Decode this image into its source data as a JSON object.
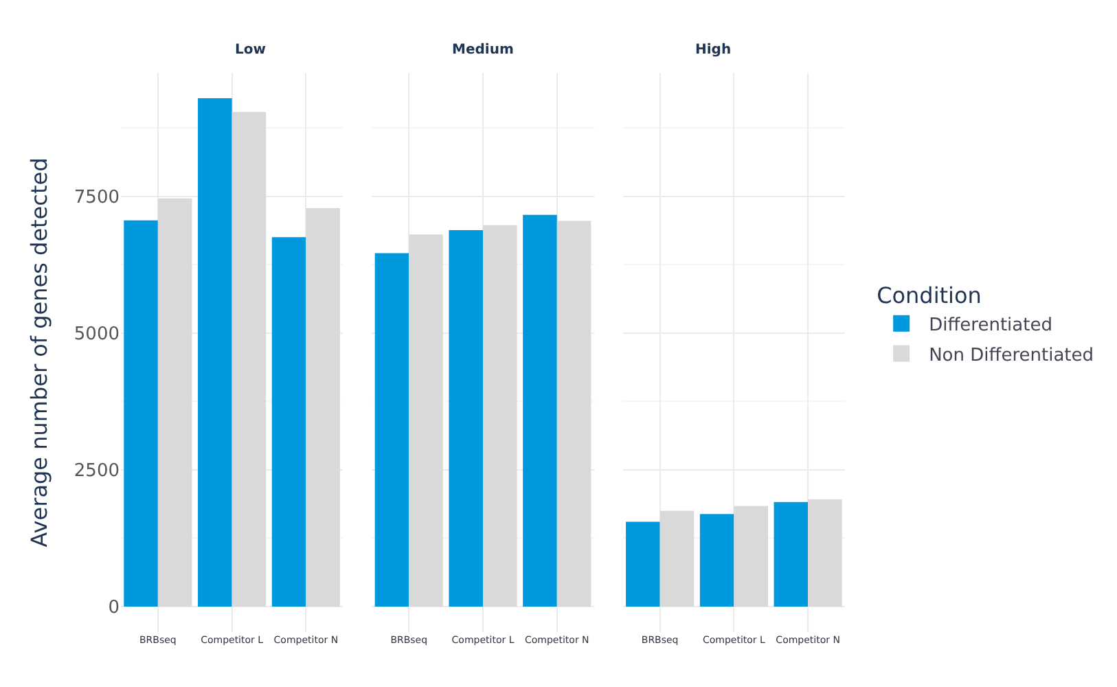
{
  "chart_data": [
    {
      "type": "bar",
      "title": "Low",
      "ylabel": "Average number of genes detected",
      "categories": [
        "BRBseq",
        "Competitor L",
        "Competitor N"
      ],
      "ylim": [
        -465,
        9755
      ],
      "yticks": [
        0,
        2500,
        5000,
        7500
      ],
      "grid": true,
      "legend": "right",
      "legend_title": "Condition",
      "series": [
        {
          "name": "Differentiated",
          "color": "#0099dd",
          "values": [
            7060,
            9290,
            6750
          ]
        },
        {
          "name": "Non Differentiated",
          "color": "#d9d9d9",
          "values": [
            7460,
            9040,
            7280
          ]
        }
      ]
    },
    {
      "type": "bar",
      "title": "Medium",
      "categories": [
        "BRBseq",
        "Competitor L",
        "Competitor N"
      ],
      "ylim": [
        -465,
        9755
      ],
      "yticks": [
        0,
        2500,
        5000,
        7500
      ],
      "grid": true,
      "tick_labels": "x",
      "series": [
        {
          "color": "#0099dd",
          "values": [
            6460,
            6880,
            7160
          ]
        },
        {
          "color": "#d9d9d9",
          "values": [
            6800,
            6970,
            7050
          ]
        }
      ]
    },
    {
      "type": "bar",
      "title": "High",
      "categories": [
        "BRBseq",
        "Competitor L",
        "Competitor N"
      ],
      "ylim": [
        -465,
        9755
      ],
      "yticks": [
        0,
        2500,
        5000,
        7500
      ],
      "grid": true,
      "tick_labels": "x",
      "series": [
        {
          "color": "#0099dd",
          "values": [
            1550,
            1690,
            1910
          ]
        },
        {
          "color": "#d9d9d9",
          "values": [
            1750,
            1840,
            1960
          ]
        }
      ]
    }
  ]
}
